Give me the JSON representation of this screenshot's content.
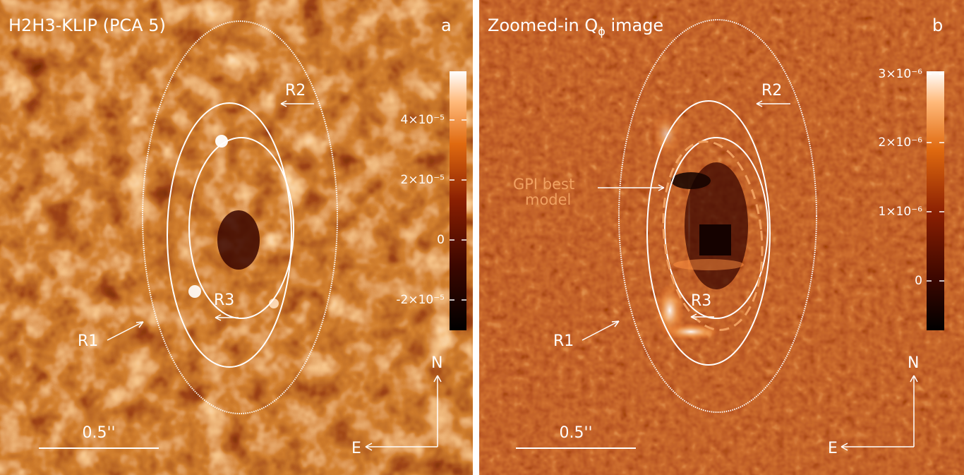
{
  "colors": {
    "background": "#2a0500",
    "mid": "#9b2705",
    "highlight": "#ffffff",
    "ellipse": "#ffffff",
    "model": "#f0a060"
  },
  "panel_a": {
    "title": "H2H3-KLIP (PCA 5)",
    "letter": "a",
    "ring_labels": {
      "r1": "R1",
      "r2": "R2",
      "r3": "R3"
    },
    "scale_bar_label": "0.5''",
    "compass": {
      "north": "N",
      "east": "E"
    },
    "colorbar_ticks": [
      "4×10⁻⁵",
      "2×10⁻⁵",
      "0",
      "-2×10⁻⁵"
    ]
  },
  "panel_b": {
    "title": "Zoomed-in Q",
    "title_sub": "ϕ",
    "title_tail": " image",
    "letter": "b",
    "ring_labels": {
      "r1": "R1",
      "r2": "R2",
      "r3": "R3"
    },
    "model_label_line1": "GPI best",
    "model_label_line2": "model",
    "scale_bar_label": "0.5''",
    "compass": {
      "north": "N",
      "east": "E"
    },
    "colorbar_ticks": [
      "3×10⁻⁶",
      "2×10⁻⁶",
      "1×10⁻⁶",
      "0"
    ]
  }
}
